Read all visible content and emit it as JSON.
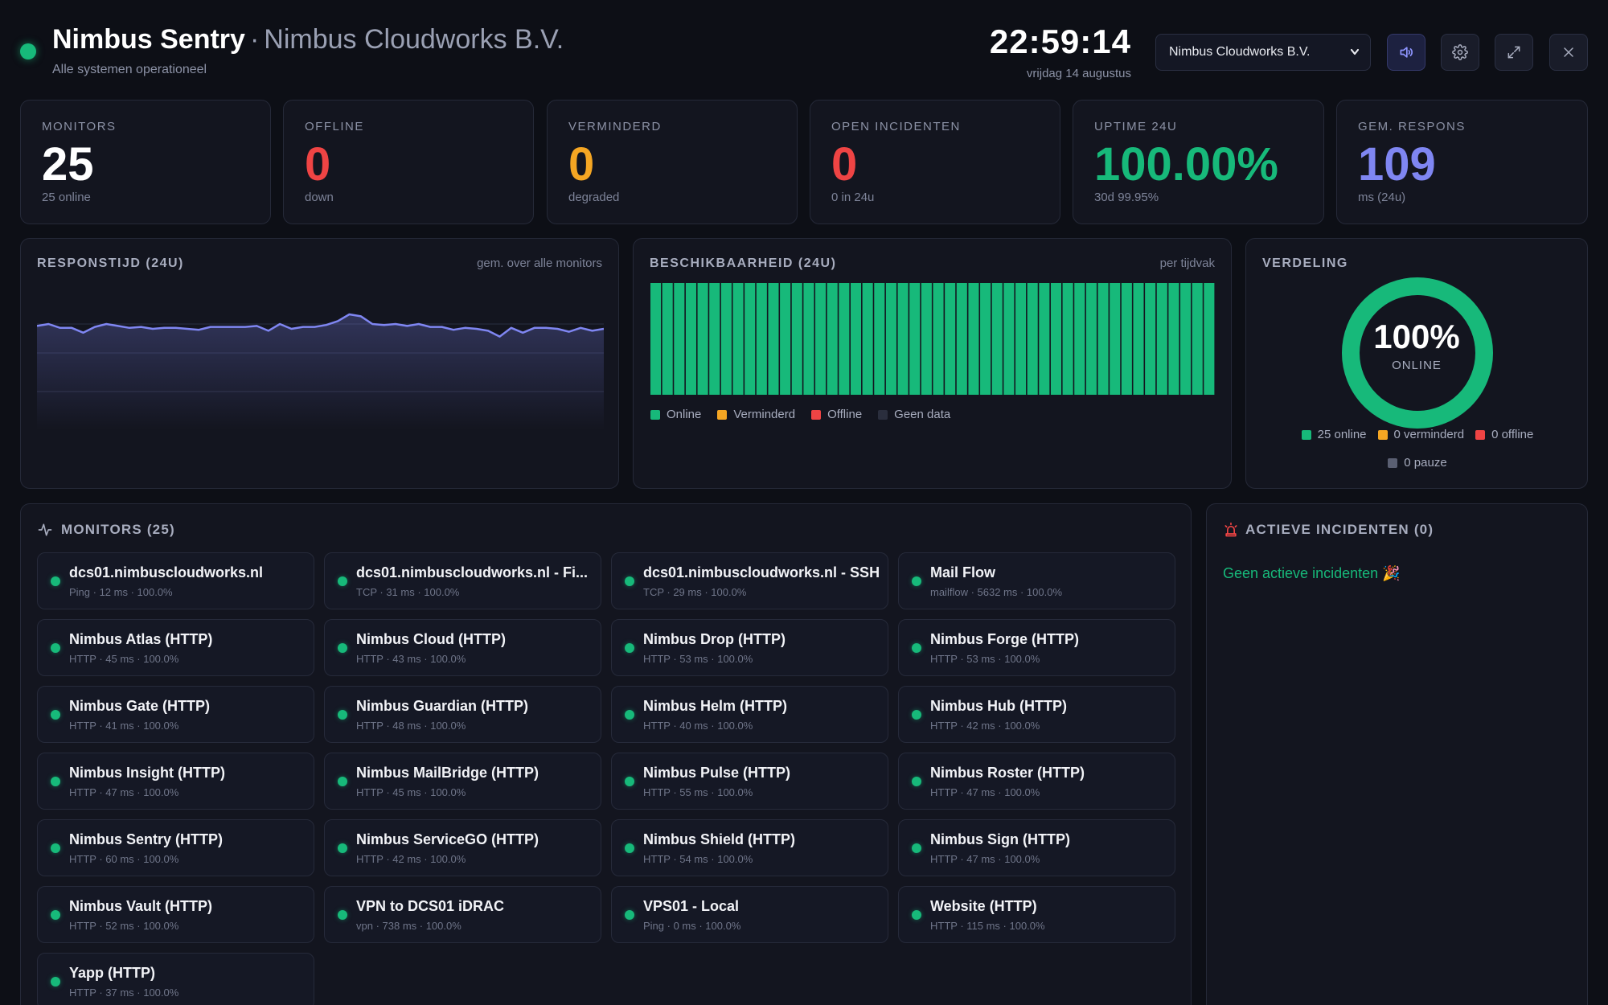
{
  "header": {
    "title": "Nimbus Sentry",
    "separator": "·",
    "org": "Nimbus Cloudworks B.V.",
    "status": "Alle systemen operationeel",
    "clock": "22:59:14",
    "date": "vrijdag 14 augustus",
    "org_select_value": "Nimbus Cloudworks B.V.",
    "icons": [
      "speaker-icon",
      "gear-icon",
      "expand-icon",
      "close-icon"
    ]
  },
  "colors": {
    "online": "#17b97a",
    "degraded": "#f5a623",
    "offline": "#ef4444",
    "nodata": "#2a2e3d",
    "accent": "#7f86f2"
  },
  "stats": [
    {
      "label": "MONITORS",
      "value": "25",
      "sub": "25 online",
      "color": "#ffffff"
    },
    {
      "label": "OFFLINE",
      "value": "0",
      "sub": "down",
      "color": "#ef4444"
    },
    {
      "label": "VERMINDERD",
      "value": "0",
      "sub": "degraded",
      "color": "#f5a623"
    },
    {
      "label": "OPEN INCIDENTEN",
      "value": "0",
      "sub": "0 in 24u",
      "color": "#ef4444"
    },
    {
      "label": "UPTIME 24U",
      "value": "100.00%",
      "sub": "30d 99.95%",
      "color": "#17b97a"
    },
    {
      "label": "GEM. RESPONS",
      "value": "109",
      "sub": "ms (24u)",
      "color": "#7f86f2"
    }
  ],
  "response": {
    "title": "RESPONSTIJD (24U)",
    "note": "gem. over alle monitors"
  },
  "availability": {
    "title": "BESCHIKBAARHEID (24U)",
    "note": "per tijdvak",
    "legend": [
      "Online",
      "Verminderd",
      "Offline",
      "Geen data"
    ]
  },
  "distribution": {
    "title": "VERDELING",
    "percent": "100%",
    "label": "ONLINE",
    "legend": [
      "25 online",
      "0 verminderd",
      "0 offline",
      "0 pauze"
    ]
  },
  "chart_data": [
    {
      "type": "line",
      "title": "RESPONSTIJD (24U)",
      "x": [
        1,
        2,
        3,
        4,
        5,
        6,
        7,
        8,
        9,
        10,
        11,
        12,
        13,
        14,
        15,
        16,
        17,
        18,
        19,
        20,
        21,
        22,
        23,
        24,
        25,
        26,
        27,
        28,
        29,
        30,
        31,
        32,
        33,
        34,
        35,
        36,
        37,
        38,
        39,
        40,
        41,
        42,
        43,
        44,
        45,
        46,
        47,
        48,
        49,
        50
      ],
      "series": [
        {
          "values": [
            108,
            110,
            106,
            106,
            101,
            107,
            110,
            108,
            106,
            107,
            105,
            106,
            106,
            105,
            104,
            107,
            107,
            107,
            107,
            108,
            103,
            110,
            105,
            107,
            107,
            109,
            113,
            120,
            118,
            110,
            109,
            110,
            108,
            110,
            107,
            107,
            104,
            106,
            105,
            103,
            97,
            106,
            101,
            106,
            106,
            105,
            102,
            106,
            103,
            105
          ]
        }
      ],
      "ylim": [
        0,
        150
      ],
      "grid": true
    },
    {
      "type": "bar",
      "title": "BESCHIKBAARHEID (24U)",
      "categories": [
        "1",
        "2",
        "3",
        "4",
        "5",
        "6",
        "7",
        "8",
        "9",
        "10",
        "11",
        "12",
        "13",
        "14",
        "15",
        "16",
        "17",
        "18",
        "19",
        "20",
        "21",
        "22",
        "23",
        "24",
        "25",
        "26",
        "27",
        "28",
        "29",
        "30",
        "31",
        "32",
        "33",
        "34",
        "35",
        "36",
        "37",
        "38",
        "39",
        "40",
        "41",
        "42",
        "43",
        "44",
        "45",
        "46",
        "47",
        "48"
      ],
      "values": [
        100,
        100,
        100,
        100,
        100,
        100,
        100,
        100,
        100,
        100,
        100,
        100,
        100,
        100,
        100,
        100,
        100,
        100,
        100,
        100,
        100,
        100,
        100,
        100,
        100,
        100,
        100,
        100,
        100,
        100,
        100,
        100,
        100,
        100,
        100,
        100,
        100,
        100,
        100,
        100,
        100,
        100,
        100,
        100,
        100,
        100,
        100,
        100
      ],
      "ylim": [
        0,
        100
      ],
      "legend": [
        "Online",
        "Verminderd",
        "Offline",
        "Geen data"
      ]
    },
    {
      "type": "pie",
      "title": "VERDELING",
      "categories": [
        "online",
        "verminderd",
        "offline",
        "pauze"
      ],
      "values": [
        25,
        0,
        0,
        0
      ]
    }
  ],
  "monitors": {
    "title": "MONITORS (25)",
    "items": [
      {
        "name": "dcs01.nimbuscloudworks.nl",
        "meta": "Ping · 12 ms · 100.0%"
      },
      {
        "name": "dcs01.nimbuscloudworks.nl - Fi...",
        "meta": "TCP · 31 ms · 100.0%"
      },
      {
        "name": "dcs01.nimbuscloudworks.nl - SSH",
        "meta": "TCP · 29 ms · 100.0%"
      },
      {
        "name": "Mail Flow",
        "meta": "mailflow · 5632 ms · 100.0%"
      },
      {
        "name": "Nimbus Atlas (HTTP)",
        "meta": "HTTP · 45 ms · 100.0%"
      },
      {
        "name": "Nimbus Cloud (HTTP)",
        "meta": "HTTP · 43 ms · 100.0%"
      },
      {
        "name": "Nimbus Drop (HTTP)",
        "meta": "HTTP · 53 ms · 100.0%"
      },
      {
        "name": "Nimbus Forge (HTTP)",
        "meta": "HTTP · 53 ms · 100.0%"
      },
      {
        "name": "Nimbus Gate (HTTP)",
        "meta": "HTTP · 41 ms · 100.0%"
      },
      {
        "name": "Nimbus Guardian (HTTP)",
        "meta": "HTTP · 48 ms · 100.0%"
      },
      {
        "name": "Nimbus Helm (HTTP)",
        "meta": "HTTP · 40 ms · 100.0%"
      },
      {
        "name": "Nimbus Hub (HTTP)",
        "meta": "HTTP · 42 ms · 100.0%"
      },
      {
        "name": "Nimbus Insight (HTTP)",
        "meta": "HTTP · 47 ms · 100.0%"
      },
      {
        "name": "Nimbus MailBridge (HTTP)",
        "meta": "HTTP · 45 ms · 100.0%"
      },
      {
        "name": "Nimbus Pulse (HTTP)",
        "meta": "HTTP · 55 ms · 100.0%"
      },
      {
        "name": "Nimbus Roster (HTTP)",
        "meta": "HTTP · 47 ms · 100.0%"
      },
      {
        "name": "Nimbus Sentry (HTTP)",
        "meta": "HTTP · 60 ms · 100.0%"
      },
      {
        "name": "Nimbus ServiceGO (HTTP)",
        "meta": "HTTP · 42 ms · 100.0%"
      },
      {
        "name": "Nimbus Shield (HTTP)",
        "meta": "HTTP · 54 ms · 100.0%"
      },
      {
        "name": "Nimbus Sign (HTTP)",
        "meta": "HTTP · 47 ms · 100.0%"
      },
      {
        "name": "Nimbus Vault (HTTP)",
        "meta": "HTTP · 52 ms · 100.0%"
      },
      {
        "name": "VPN to DCS01 iDRAC",
        "meta": "vpn · 738 ms · 100.0%"
      },
      {
        "name": "VPS01 - Local",
        "meta": "Ping · 0 ms · 100.0%"
      },
      {
        "name": "Website (HTTP)",
        "meta": "HTTP · 115 ms · 100.0%"
      },
      {
        "name": "Yapp (HTTP)",
        "meta": "HTTP · 37 ms · 100.0%"
      }
    ]
  },
  "incidents": {
    "title": "ACTIEVE INCIDENTEN (0)",
    "empty": "Geen actieve incidenten 🎉"
  }
}
